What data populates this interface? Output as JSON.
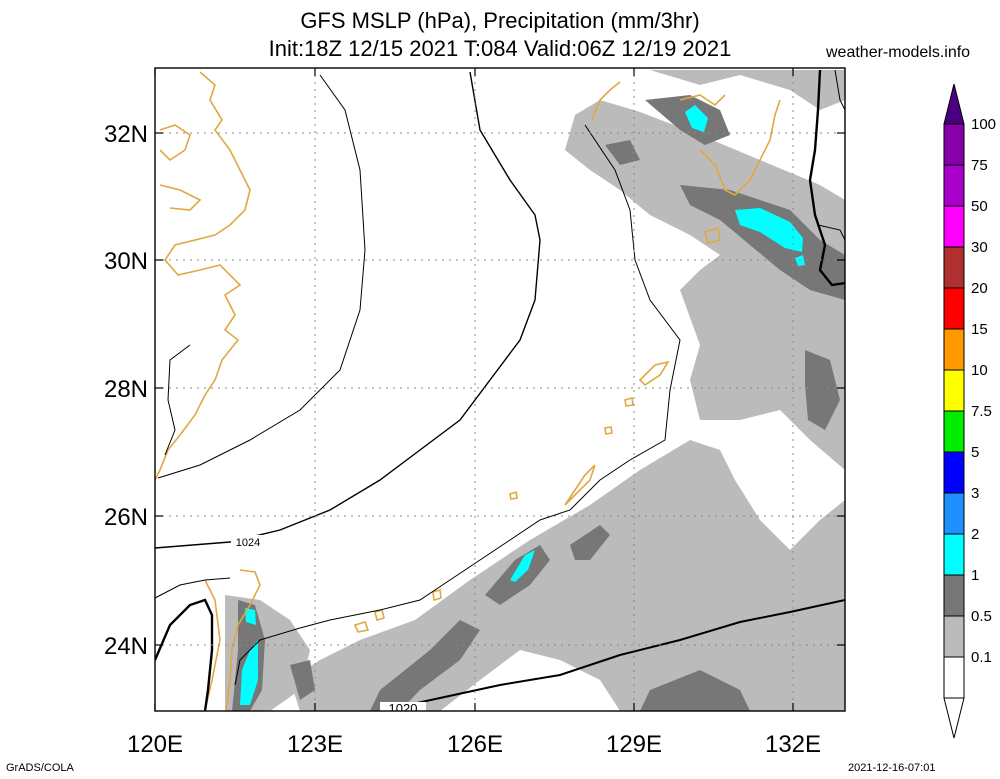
{
  "header": {
    "title_line1": "GFS MSLP (hPa), Precipitation (mm/3hr)",
    "title_line2": "Init:18Z 12/15 2021 T:084 Valid:06Z 12/19 2021",
    "site": "weather-models.info"
  },
  "footer": {
    "left": "GrADS/COLA",
    "right": "2021-12-16-07:01"
  },
  "map": {
    "lon_labels": [
      "120E",
      "123E",
      "126E",
      "129E",
      "132E"
    ],
    "lat_labels": [
      "32N",
      "30N",
      "28N",
      "26N",
      "24N"
    ],
    "contour_labels": [
      "1024",
      "1020"
    ]
  },
  "legend": {
    "levels": [
      "100",
      "75",
      "50",
      "30",
      "20",
      "15",
      "10",
      "7.5",
      "5",
      "3",
      "2",
      "1",
      "0.5",
      "0.1"
    ],
    "colors": [
      "#8800aa",
      "#aa00cc",
      "#ff00ff",
      "#b03030",
      "#ff0000",
      "#ff9900",
      "#ffff00",
      "#00ee00",
      "#0000ff",
      "#1e90ff",
      "#00ffff",
      "#777777",
      "#bbbbbb",
      "#ffffff"
    ],
    "top_color": "#4b0082"
  }
}
